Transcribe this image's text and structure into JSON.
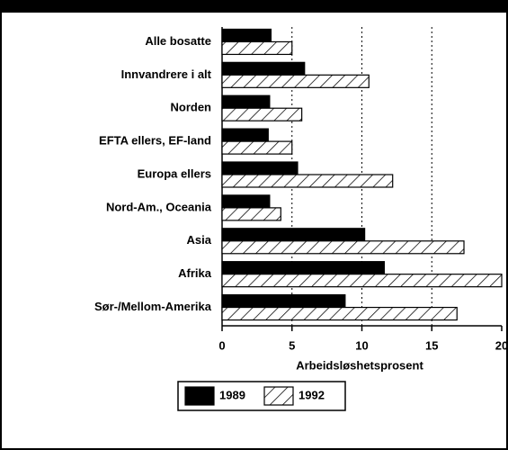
{
  "chart_data": {
    "type": "hbar",
    "categories": [
      "Alle bosatte",
      "Innvandrere i alt",
      "Norden",
      "EFTA ellers, EF-land",
      "Europa ellers",
      "Nord-Am., Oceania",
      "Asia",
      "Afrika",
      "Sør-/Mellom-Amerika"
    ],
    "series": [
      {
        "name": "1989",
        "color": "#000000",
        "pattern": "solid",
        "values": [
          3.5,
          5.9,
          3.4,
          3.3,
          5.4,
          3.4,
          10.2,
          11.6,
          8.8
        ]
      },
      {
        "name": "1992",
        "color": "#000000",
        "pattern": "hatch",
        "values": [
          5.0,
          10.5,
          5.7,
          5.0,
          12.2,
          4.2,
          17.3,
          20.0,
          16.8
        ]
      }
    ],
    "xlabel": "Arbeidsløshetsprosent",
    "xlim": [
      0,
      20
    ],
    "xticks": [
      0,
      5,
      10,
      15,
      20
    ],
    "grid": true,
    "legend": "bottom"
  }
}
